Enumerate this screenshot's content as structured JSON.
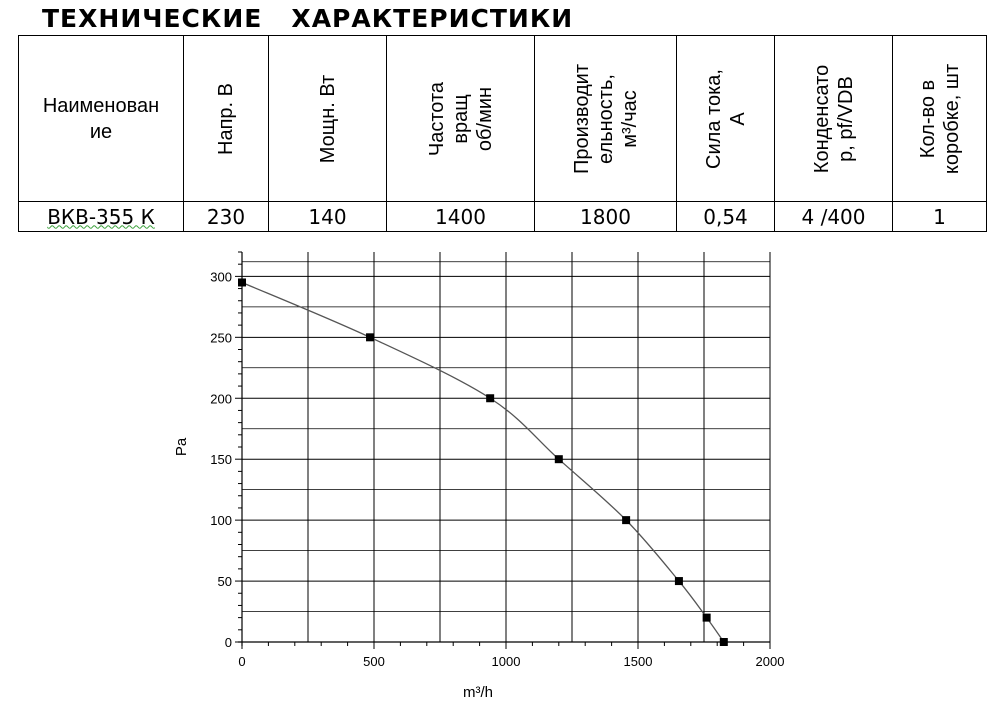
{
  "title": "ТЕХНИЧЕСКИЕ   ХАРАКТЕРИСТИКИ",
  "table": {
    "headers": {
      "name": "Наименован\nие",
      "voltage": "Напр. В",
      "power": "Мощн. Вт",
      "speed": "Частота\nвращ\nоб/мин",
      "capacity": "Производит\nельность,\nм³/час",
      "current": "Сила тока,\nА",
      "capacitor": "Конденсато\nр, pf/VDB",
      "per_box": "Кол-во в\nкоробке, шт"
    },
    "row": {
      "name": "ВКВ-355 К",
      "voltage": "230",
      "power": "140",
      "speed": "1400",
      "capacity": "1800",
      "current": "0,54",
      "capacitor": "4 /400",
      "per_box": "1"
    }
  },
  "chart_data": {
    "type": "line",
    "xlabel": "m³/h",
    "ylabel": "Pa",
    "xlim": [
      0,
      2000
    ],
    "ylim": [
      0,
      320
    ],
    "xticks": [
      0,
      500,
      1000,
      1500,
      2000
    ],
    "yticks": [
      0,
      50,
      100,
      150,
      200,
      250,
      300
    ],
    "grid": true,
    "series": [
      {
        "x": [
          0,
          485,
          940,
          1200,
          1455,
          1655,
          1760,
          1825
        ],
        "y": [
          295,
          250,
          200,
          150,
          100,
          50,
          20,
          0
        ]
      }
    ],
    "colors": {
      "line": "#555555",
      "marker": "#000000",
      "grid": "#000000"
    }
  }
}
